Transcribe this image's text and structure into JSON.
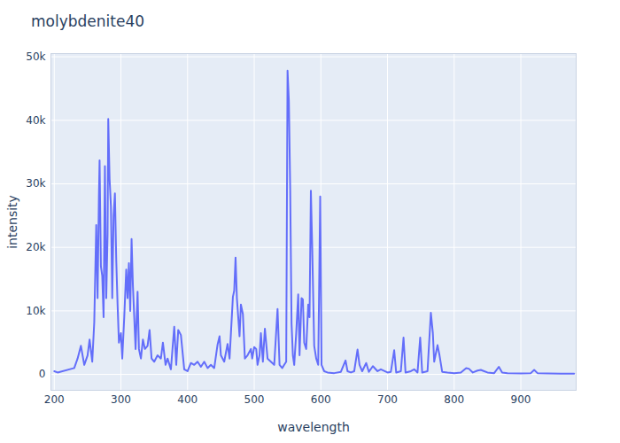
{
  "chart_data": {
    "type": "line",
    "title": "molybdenite40",
    "x_label": "wavelength",
    "y_label": "intensity",
    "color": "#636efa",
    "grid": true,
    "xlim": [
      195,
      983
    ],
    "ylim": [
      -2500,
      50500
    ],
    "xticks": [
      200,
      300,
      400,
      500,
      600,
      700,
      800,
      900
    ],
    "yticks": [
      0,
      {
        "value": 10000,
        "label": "10k"
      },
      {
        "value": 20000,
        "label": "20k"
      },
      {
        "value": 30000,
        "label": "30k"
      },
      {
        "value": 40000,
        "label": "40k"
      },
      {
        "value": 50000,
        "label": "50k"
      }
    ],
    "x": [
      200,
      205,
      230,
      235,
      240,
      245,
      250,
      253,
      257,
      260,
      263,
      265,
      267,
      268,
      270,
      272,
      274,
      276,
      278,
      280,
      281,
      283,
      285,
      287,
      289,
      291,
      293,
      295,
      297,
      300,
      302,
      305,
      308,
      310,
      312,
      314,
      316,
      318,
      320,
      322,
      325,
      327,
      330,
      333,
      336,
      340,
      343,
      346,
      350,
      355,
      360,
      363,
      367,
      370,
      375,
      380,
      383,
      386,
      390,
      395,
      400,
      405,
      410,
      415,
      420,
      425,
      430,
      435,
      440,
      445,
      448,
      450,
      455,
      460,
      463,
      468,
      470,
      472,
      474,
      476,
      478,
      480,
      483,
      486,
      490,
      495,
      497,
      500,
      503,
      505,
      508,
      510,
      513,
      516,
      520,
      525,
      530,
      535,
      538,
      542,
      545,
      548,
      550,
      552,
      554,
      556,
      558,
      560,
      563,
      566,
      568,
      571,
      573,
      575,
      578,
      581,
      583,
      585,
      587,
      590,
      593,
      596,
      599,
      601,
      605,
      610,
      620,
      630,
      637,
      640,
      645,
      650,
      655,
      658,
      662,
      668,
      672,
      678,
      685,
      690,
      700,
      705,
      710,
      713,
      720,
      724,
      727,
      735,
      740,
      745,
      749,
      752,
      760,
      765,
      768,
      770,
      775,
      778,
      782,
      790,
      800,
      810,
      818,
      822,
      828,
      835,
      840,
      845,
      850,
      860,
      867,
      872,
      880,
      900,
      915,
      920,
      925,
      940,
      960,
      980
    ],
    "values": [
      500,
      300,
      1000,
      2500,
      4500,
      1500,
      3000,
      5500,
      2000,
      8200,
      23500,
      12000,
      28000,
      33700,
      17000,
      15500,
      9000,
      32800,
      12000,
      22000,
      40200,
      30800,
      26500,
      12000,
      25000,
      28500,
      18000,
      11000,
      5000,
      6500,
      2500,
      9000,
      16500,
      12000,
      17500,
      10000,
      21300,
      14000,
      9000,
      4000,
      13000,
      4000,
      2500,
      5500,
      4000,
      4500,
      7000,
      2500,
      2000,
      3000,
      2500,
      5000,
      1500,
      2500,
      800,
      7500,
      1500,
      7000,
      6200,
      800,
      500,
      1800,
      1500,
      2000,
      1200,
      2000,
      1000,
      1500,
      1000,
      4700,
      6000,
      3000,
      2000,
      4800,
      2500,
      12200,
      13200,
      18400,
      12000,
      9000,
      6000,
      11000,
      9500,
      2500,
      3000,
      4000,
      2500,
      4300,
      4000,
      1500,
      3000,
      6500,
      2000,
      7200,
      2500,
      2000,
      1500,
      10300,
      1500,
      1000,
      1500,
      2000,
      47800,
      43000,
      29000,
      8000,
      3000,
      1500,
      6500,
      12600,
      3000,
      12000,
      11800,
      5000,
      4000,
      11000,
      9000,
      28900,
      20000,
      4500,
      2500,
      1500,
      28000,
      1500,
      500,
      300,
      200,
      400,
      2200,
      500,
      300,
      500,
      3900,
      1500,
      500,
      1800,
      400,
      1300,
      500,
      800,
      300,
      400,
      3800,
      300,
      500,
      5800,
      300,
      500,
      800,
      300,
      5800,
      300,
      500,
      9700,
      6500,
      2000,
      4600,
      3000,
      400,
      300,
      200,
      300,
      1000,
      900,
      300,
      600,
      700,
      500,
      300,
      200,
      1200,
      300,
      200,
      150,
      200,
      700,
      200,
      150,
      100,
      100
    ]
  }
}
